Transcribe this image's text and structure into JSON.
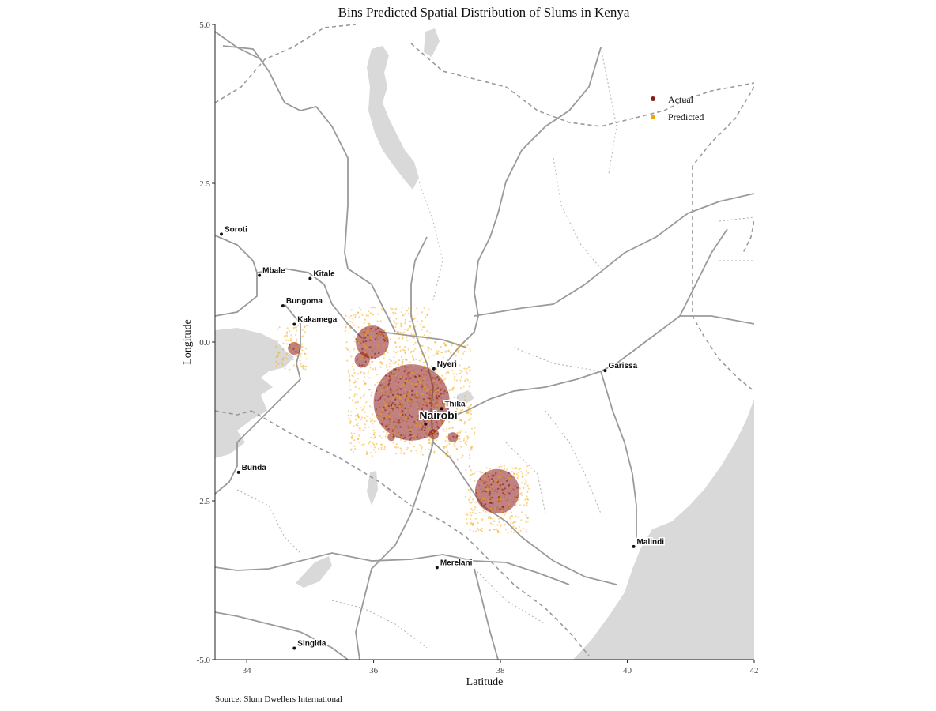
{
  "chart_data": {
    "type": "scatter",
    "title": "Bins Predicted Spatial Distribution of Slums in Kenya",
    "xlabel": "Latitude",
    "ylabel": "Longitude",
    "caption": "Source: Slum Dwellers International",
    "xlim": [
      33.5,
      42
    ],
    "ylim": [
      -5,
      5
    ],
    "x_ticks": [
      {
        "value": 34,
        "label": "34"
      },
      {
        "value": 36,
        "label": "36"
      },
      {
        "value": 38,
        "label": "38"
      },
      {
        "value": 40,
        "label": "40"
      },
      {
        "value": 42,
        "label": "42"
      }
    ],
    "y_ticks": [
      {
        "value": 5,
        "label": "5.0"
      },
      {
        "value": 2.5,
        "label": "2.5"
      },
      {
        "value": 0,
        "label": "0.0"
      },
      {
        "value": -2.5,
        "label": "-2.5"
      },
      {
        "value": -5,
        "label": "-5.0"
      }
    ],
    "grid": false,
    "legend_position": "top-right",
    "colors": {
      "actual": "#8b1a1a",
      "predicted": "#f5a300",
      "water": "#d9d9d9",
      "road": "#9a9a9a"
    },
    "series": [
      {
        "name": "Actual",
        "color": "#8b1a1a",
        "clusters": [
          {
            "x": 36.6,
            "y": -0.95,
            "r": 0.6
          },
          {
            "x": 35.98,
            "y": 0.0,
            "r": 0.26
          },
          {
            "x": 35.82,
            "y": -0.28,
            "r": 0.12
          },
          {
            "x": 37.95,
            "y": -2.35,
            "r": 0.35
          },
          {
            "x": 34.75,
            "y": -0.1,
            "r": 0.1
          },
          {
            "x": 36.95,
            "y": -1.45,
            "r": 0.08
          },
          {
            "x": 37.25,
            "y": -1.5,
            "r": 0.08
          },
          {
            "x": 36.28,
            "y": -1.5,
            "r": 0.06
          }
        ]
      },
      {
        "name": "Predicted",
        "color": "#f5a300",
        "regions": [
          {
            "x_range": [
              35.55,
              36.9
            ],
            "y_range": [
              -0.45,
              0.55
            ]
          },
          {
            "x_range": [
              35.6,
              37.0
            ],
            "y_range": [
              -1.8,
              -0.45
            ]
          },
          {
            "x_range": [
              36.9,
              37.55
            ],
            "y_range": [
              -1.3,
              0.0
            ]
          },
          {
            "x_range": [
              37.1,
              37.6
            ],
            "y_range": [
              -1.85,
              -1.3
            ]
          },
          {
            "x_range": [
              37.45,
              38.45
            ],
            "y_range": [
              -3.0,
              -1.95
            ]
          },
          {
            "x_range": [
              34.45,
              34.95
            ],
            "y_range": [
              -0.45,
              0.3
            ]
          }
        ]
      }
    ],
    "cities": [
      {
        "name": "Soroti",
        "x": 33.6,
        "y": 1.7
      },
      {
        "name": "Mbale",
        "x": 34.2,
        "y": 1.05
      },
      {
        "name": "Kitale",
        "x": 35.0,
        "y": 1.0
      },
      {
        "name": "Bungoma",
        "x": 34.57,
        "y": 0.57
      },
      {
        "name": "Kakamega",
        "x": 34.75,
        "y": 0.28
      },
      {
        "name": "Nyeri",
        "x": 36.95,
        "y": -0.42
      },
      {
        "name": "Thika",
        "x": 37.07,
        "y": -1.05
      },
      {
        "name": "Nairobi",
        "x": 36.82,
        "y": -1.29
      },
      {
        "name": "Garissa",
        "x": 39.65,
        "y": -0.45
      },
      {
        "name": "Bunda",
        "x": 33.87,
        "y": -2.05
      },
      {
        "name": "Malindi",
        "x": 40.1,
        "y": -3.22
      },
      {
        "name": "Merelani",
        "x": 37.0,
        "y": -3.55
      },
      {
        "name": "Singida",
        "x": 34.75,
        "y": -4.82
      }
    ]
  }
}
